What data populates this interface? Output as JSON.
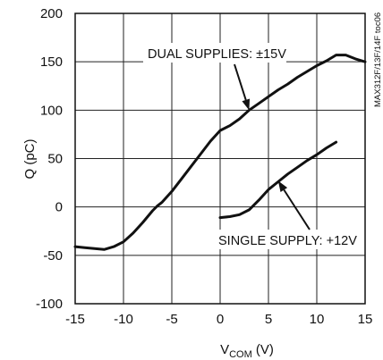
{
  "chart_data": {
    "type": "line",
    "title": "",
    "xlabel": {
      "main": "V",
      "sub": "COM",
      "unit": " (V)"
    },
    "ylabel": "Q (pC)",
    "xlim": [
      -15,
      15
    ],
    "ylim": [
      -100,
      200
    ],
    "xticks": [
      -15,
      -10,
      -5,
      0,
      5,
      10,
      15
    ],
    "xtick_labels": [
      "-15",
      "-10",
      "-5",
      "0",
      "5",
      "10",
      "15"
    ],
    "yticks": [
      -100,
      -50,
      0,
      50,
      100,
      150,
      200
    ],
    "ytick_labels": [
      "-100",
      "-50",
      "0",
      "50",
      "100",
      "150",
      "200"
    ],
    "grid": true,
    "legend": "none",
    "side_id": "MAX312F/13F/14F toc06",
    "series": [
      {
        "key": "dual",
        "x": [
          -15,
          -14,
          -13,
          -12,
          -11,
          -10,
          -9,
          -8,
          -7,
          -6.5,
          -6,
          -5,
          -4,
          -3,
          -2,
          -1,
          0,
          1,
          2,
          3,
          4,
          5,
          6,
          7,
          8,
          9,
          10,
          11,
          12,
          13,
          14,
          15
        ],
        "y": [
          -41,
          -42,
          -43,
          -44,
          -41,
          -36,
          -27,
          -16,
          -4,
          1,
          5,
          16,
          29,
          42,
          55,
          68,
          79,
          84,
          91,
          100,
          107,
          114,
          121,
          127,
          134,
          140,
          146,
          151,
          157,
          157,
          153,
          150
        ]
      },
      {
        "key": "single",
        "x": [
          0,
          1,
          2,
          3,
          4,
          5,
          6,
          7,
          8,
          9,
          10,
          11,
          12
        ],
        "y": [
          -11,
          -10,
          -8,
          -3,
          7,
          18,
          26,
          34,
          41,
          48,
          54,
          61,
          67
        ]
      }
    ],
    "annotations": [
      {
        "text": "DUAL SUPPLIES: ±15V",
        "points_to": [
          3,
          100
        ]
      },
      {
        "text": "SINGLE SUPPLY: +12V",
        "points_to": [
          6,
          27
        ]
      }
    ]
  }
}
